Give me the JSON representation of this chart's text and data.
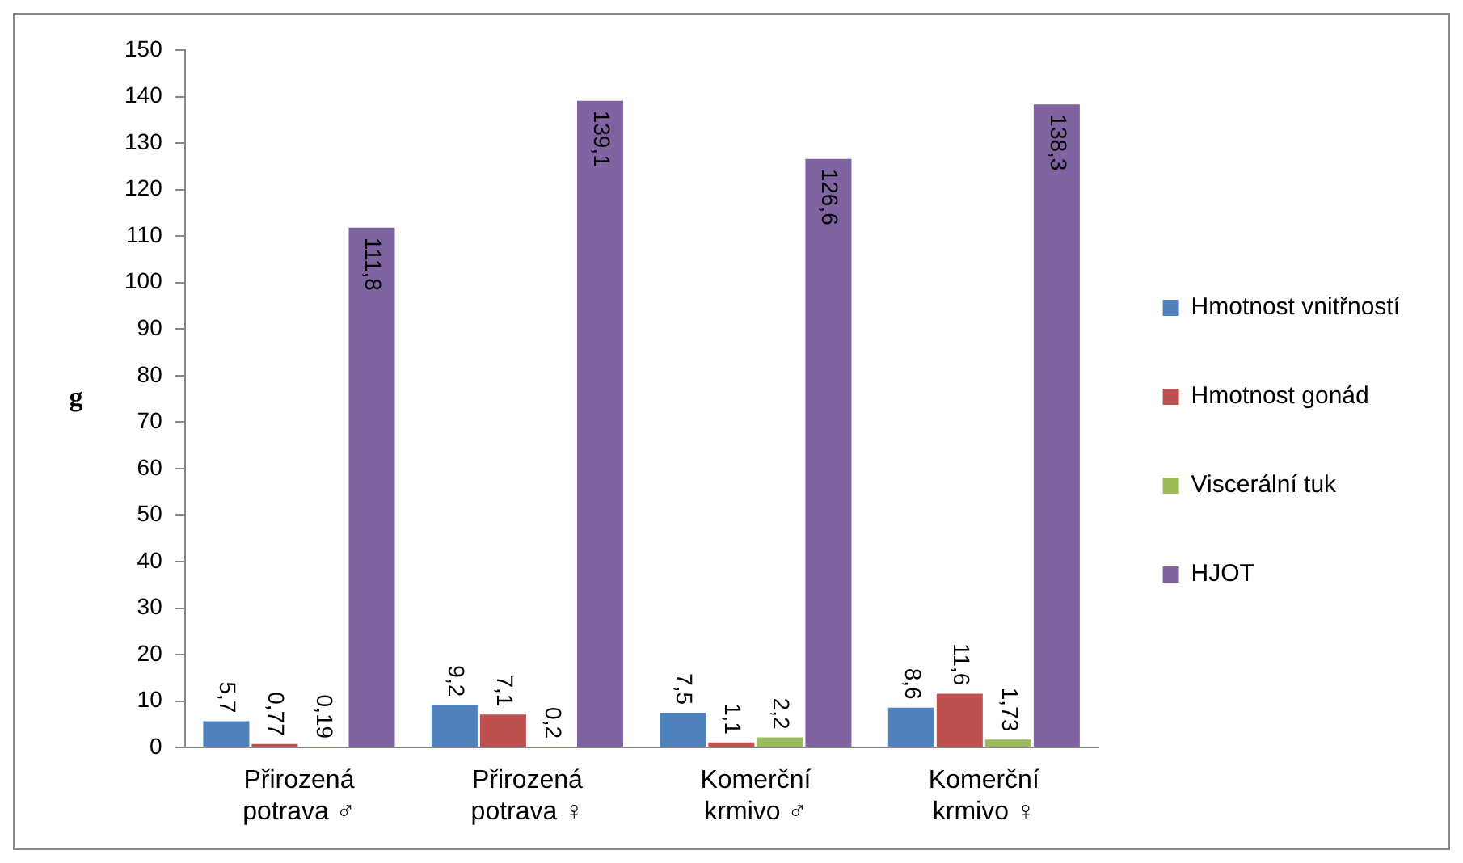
{
  "chart_data": {
    "type": "bar",
    "ylabel": "g",
    "categories": [
      "Přirozená potrava ♂",
      "Přirozená potrava ♀",
      "Komerční krmivo ♂",
      "Komerční krmivo ♀"
    ],
    "series": [
      {
        "name": "Hmotnost vnitřností",
        "color": "#4f81bd",
        "values": [
          5.7,
          9.2,
          7.5,
          8.6
        ],
        "value_labels": [
          "5,7",
          "9,2",
          "7,5",
          "8,6"
        ]
      },
      {
        "name": "Hmotnost gonád",
        "color": "#c0504d",
        "values": [
          0.77,
          7.1,
          1.1,
          11.6
        ],
        "value_labels": [
          "0,77",
          "7,1",
          "1,1",
          "11,6"
        ]
      },
      {
        "name": "Viscerální tuk",
        "color": "#9bbb59",
        "values": [
          0.19,
          0.2,
          2.2,
          1.73
        ],
        "value_labels": [
          "0,19",
          "0,2",
          "2,2",
          "1,73"
        ]
      },
      {
        "name": "HJOT",
        "color": "#8064a2",
        "values": [
          111.8,
          139.1,
          126.6,
          138.3
        ],
        "value_labels": [
          "111,8",
          "139,1",
          "126,6",
          "138,3"
        ]
      }
    ],
    "ylim": [
      0,
      150
    ],
    "yticks": [
      0,
      10,
      20,
      30,
      40,
      50,
      60,
      70,
      80,
      90,
      100,
      110,
      120,
      130,
      140,
      150
    ],
    "grid": false,
    "legend": "right"
  }
}
